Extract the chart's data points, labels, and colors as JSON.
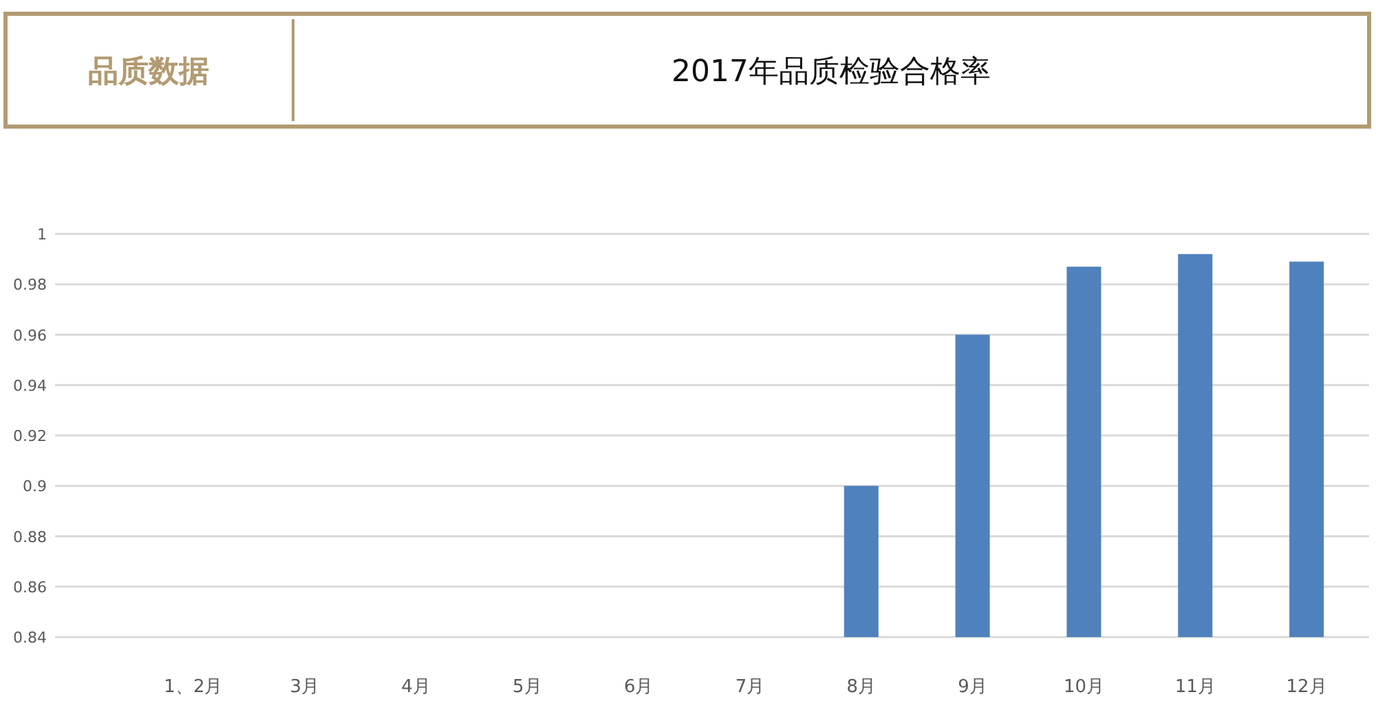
{
  "chart_data": {
    "type": "bar",
    "title": "2017年品质检验合格率",
    "annotations": [
      "品质数据"
    ],
    "categories": [
      "1、2月",
      "3月",
      "4月",
      "5月",
      "6月",
      "7月",
      "8月",
      "9月",
      "10月",
      "11月",
      "12月"
    ],
    "values": [
      null,
      null,
      null,
      null,
      null,
      null,
      0.9,
      0.96,
      0.987,
      0.992,
      0.989
    ],
    "color": "#4f81bd",
    "ylim": [
      0.84,
      1
    ],
    "yticks": [
      0.84,
      0.86,
      0.88,
      0.9,
      0.92,
      0.94,
      0.96,
      0.98,
      1
    ],
    "grid": "y"
  }
}
